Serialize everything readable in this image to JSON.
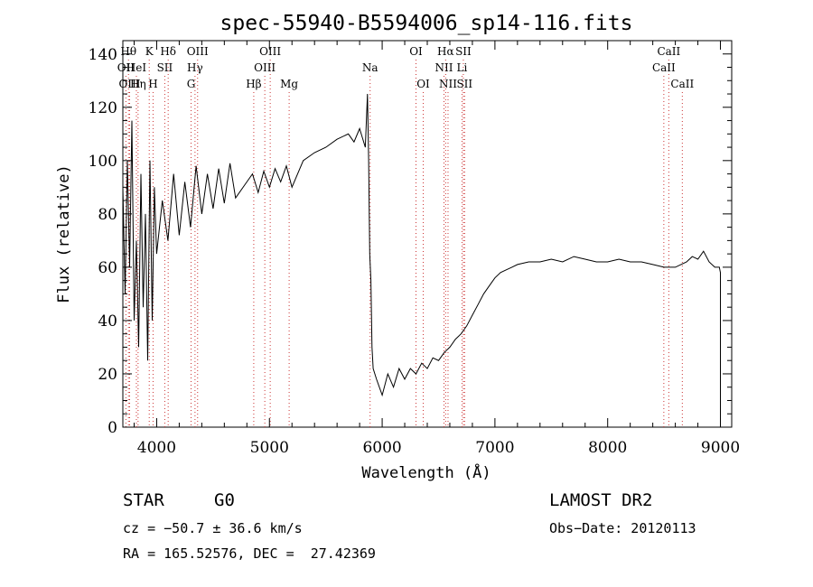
{
  "chart_data": {
    "type": "line",
    "title": "spec-55940-B5594006_sp14-116.fits",
    "xlabel": "Wavelength (Å)",
    "ylabel": "Flux (relative)",
    "xlim": [
      3700,
      9100
    ],
    "ylim": [
      0,
      145
    ],
    "x_ticks": [
      4000,
      5000,
      6000,
      7000,
      8000,
      9000
    ],
    "y_ticks": [
      0,
      20,
      40,
      60,
      80,
      100,
      120,
      140
    ],
    "grid": false,
    "spectrum": {
      "x": [
        3700,
        3720,
        3740,
        3760,
        3780,
        3800,
        3820,
        3840,
        3860,
        3880,
        3900,
        3920,
        3940,
        3960,
        3980,
        4000,
        4050,
        4100,
        4150,
        4200,
        4250,
        4300,
        4350,
        4400,
        4450,
        4500,
        4550,
        4600,
        4650,
        4700,
        4800,
        4850,
        4900,
        4950,
        5000,
        5050,
        5100,
        5150,
        5200,
        5300,
        5400,
        5500,
        5600,
        5700,
        5750,
        5800,
        5850,
        5870,
        5880,
        5890,
        5900,
        5910,
        5920,
        5950,
        6000,
        6050,
        6100,
        6150,
        6200,
        6250,
        6300,
        6350,
        6400,
        6450,
        6500,
        6550,
        6600,
        6650,
        6700,
        6750,
        6800,
        6850,
        6900,
        6950,
        7000,
        7050,
        7100,
        7150,
        7200,
        7300,
        7400,
        7500,
        7600,
        7700,
        7800,
        7900,
        8000,
        8100,
        8200,
        8300,
        8400,
        8500,
        8600,
        8700,
        8750,
        8800,
        8850,
        8900,
        8950,
        8990,
        9000
      ],
      "y": [
        90,
        50,
        100,
        60,
        115,
        40,
        70,
        30,
        95,
        45,
        80,
        25,
        100,
        40,
        90,
        65,
        85,
        70,
        95,
        72,
        92,
        75,
        98,
        80,
        95,
        82,
        97,
        84,
        99,
        86,
        92,
        95,
        88,
        96,
        90,
        97,
        92,
        98,
        90,
        100,
        103,
        105,
        108,
        110,
        107,
        112,
        105,
        125,
        100,
        65,
        55,
        30,
        22,
        18,
        12,
        20,
        15,
        22,
        18,
        22,
        20,
        24,
        22,
        26,
        25,
        28,
        30,
        33,
        35,
        38,
        42,
        46,
        50,
        53,
        56,
        58,
        59,
        60,
        61,
        62,
        62,
        63,
        62,
        64,
        63,
        62,
        62,
        63,
        62,
        62,
        61,
        60,
        60,
        62,
        64,
        63,
        66,
        62,
        60,
        60,
        58
      ]
    },
    "spectral_lines": [
      {
        "name": "Hθ",
        "x": 3750
      },
      {
        "name": "K",
        "x": 3934
      },
      {
        "name": "Hδ",
        "x": 4102
      },
      {
        "name": "OII",
        "x": 3727
      },
      {
        "name": "HeI",
        "x": 3820
      },
      {
        "name": "SII",
        "x": 4072
      },
      {
        "name": "OIII",
        "x": 3760
      },
      {
        "name": "Hη",
        "x": 3835
      },
      {
        "name": "H",
        "x": 3968
      },
      {
        "name": "OIII",
        "x": 4363
      },
      {
        "name": "Hγ",
        "x": 4340
      },
      {
        "name": "G",
        "x": 4305
      },
      {
        "name": "OIII",
        "x": 5007
      },
      {
        "name": "OIII",
        "x": 4959
      },
      {
        "name": "Hβ",
        "x": 4861
      },
      {
        "name": "Mg",
        "x": 5175
      },
      {
        "name": "Na",
        "x": 5893
      },
      {
        "name": "OI",
        "x": 6300
      },
      {
        "name": "OI",
        "x": 6364
      },
      {
        "name": "Hα",
        "x": 6563
      },
      {
        "name": "SII",
        "x": 6720
      },
      {
        "name": "NII",
        "x": 6548
      },
      {
        "name": "Li",
        "x": 6708
      },
      {
        "name": "NII",
        "x": 6584
      },
      {
        "name": "SII",
        "x": 6731
      },
      {
        "name": "CaII",
        "x": 8542
      },
      {
        "name": "CaII",
        "x": 8498
      },
      {
        "name": "CaII",
        "x": 8662
      }
    ]
  },
  "info": {
    "object_type": "STAR",
    "subclass": "G0",
    "survey": "LAMOST DR2",
    "cz": "cz = −50.7 ± 36.6 km/s",
    "obs_date": "Obs−Date: 20120113",
    "coords": "RA = 165.52576, DEC =  27.42369"
  }
}
